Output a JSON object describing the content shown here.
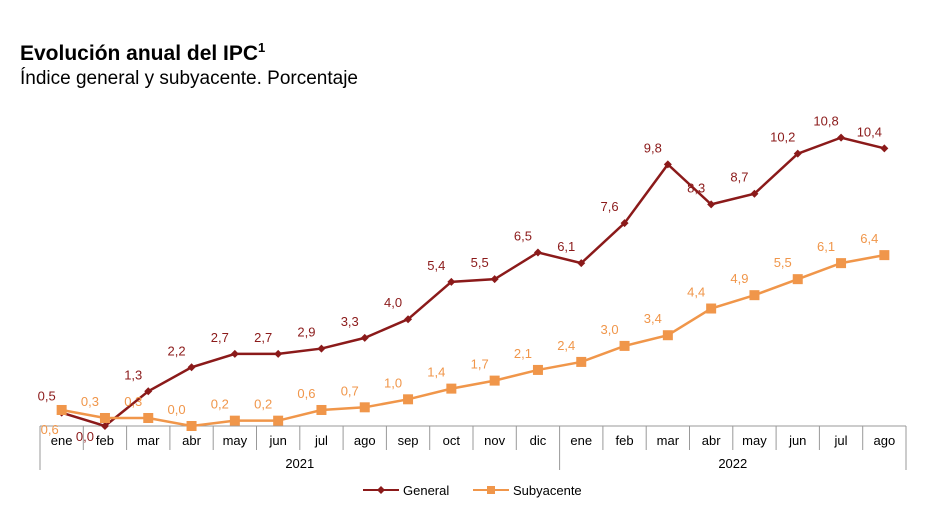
{
  "chart_data": {
    "type": "line",
    "title": "Evolución anual del IPC",
    "title_sup": "1",
    "subtitle": "Índice general y subyacente. Porcentaje",
    "categories": [
      "ene",
      "feb",
      "mar",
      "abr",
      "may",
      "jun",
      "jul",
      "ago",
      "sep",
      "oct",
      "nov",
      "dic",
      "ene",
      "feb",
      "mar",
      "abr",
      "may",
      "jun",
      "jul",
      "ago"
    ],
    "year_groups": [
      {
        "label": "2021",
        "count": 12
      },
      {
        "label": "2022",
        "count": 8
      }
    ],
    "series": [
      {
        "name": "General",
        "color": "#8B1A1A",
        "marker": "diamond",
        "values": [
          0.5,
          0.0,
          1.3,
          2.2,
          2.7,
          2.7,
          2.9,
          3.3,
          4.0,
          5.4,
          5.5,
          6.5,
          6.1,
          7.6,
          9.8,
          8.3,
          8.7,
          10.2,
          10.8,
          10.4
        ]
      },
      {
        "name": "Subyacente",
        "color": "#F0964A",
        "marker": "square",
        "values": [
          0.6,
          0.3,
          0.3,
          0.0,
          0.2,
          0.2,
          0.6,
          0.7,
          1.0,
          1.4,
          1.7,
          2.1,
          2.4,
          3.0,
          3.4,
          4.4,
          4.9,
          5.5,
          6.1,
          6.4
        ]
      }
    ],
    "ylim": [
      0,
      11
    ],
    "grid": false,
    "legend": "bottom"
  }
}
